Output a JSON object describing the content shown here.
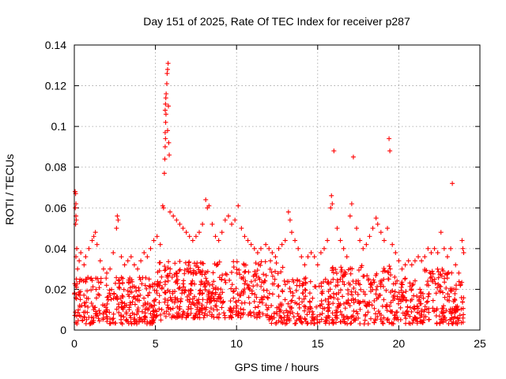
{
  "chart_data": {
    "type": "scatter",
    "title": "Day 151 of 2025, Rate Of TEC Index for receiver p287",
    "xlabel": "GPS time / hours",
    "ylabel": "ROTI / TECUs",
    "xlim": [
      0,
      25
    ],
    "ylim": [
      0,
      0.14
    ],
    "xticks": [
      0,
      5,
      10,
      15,
      20,
      25
    ],
    "xtick_labels": [
      "0",
      "5",
      "10",
      "15",
      "20",
      "25"
    ],
    "yticks": [
      0,
      0.02,
      0.04,
      0.06,
      0.08,
      0.1,
      0.12,
      0.14
    ],
    "ytick_labels": [
      "0",
      "0.02",
      "0.04",
      "0.06",
      "0.08",
      "0.1",
      "0.12",
      "0.14"
    ],
    "grid": true,
    "marker": "+",
    "color": "#ff0000",
    "series": [
      {
        "name": "ROTI",
        "points": [
          [
            0.05,
            0.068
          ],
          [
            0.08,
            0.067
          ],
          [
            0.1,
            0.062
          ],
          [
            0.06,
            0.06
          ],
          [
            0.1,
            0.056
          ],
          [
            0.12,
            0.054
          ],
          [
            0.08,
            0.052
          ],
          [
            0.15,
            0.04
          ],
          [
            0.1,
            0.036
          ],
          [
            0.2,
            0.03
          ],
          [
            0.3,
            0.034
          ],
          [
            0.4,
            0.038
          ],
          [
            0.6,
            0.032
          ],
          [
            0.7,
            0.036
          ],
          [
            0.9,
            0.04
          ],
          [
            1.1,
            0.044
          ],
          [
            1.2,
            0.046
          ],
          [
            1.3,
            0.048
          ],
          [
            1.4,
            0.042
          ],
          [
            1.6,
            0.034
          ],
          [
            1.8,
            0.03
          ],
          [
            2.0,
            0.028
          ],
          [
            2.2,
            0.03
          ],
          [
            2.4,
            0.038
          ],
          [
            2.6,
            0.05
          ],
          [
            2.65,
            0.056
          ],
          [
            2.7,
            0.054
          ],
          [
            2.9,
            0.036
          ],
          [
            3.1,
            0.032
          ],
          [
            3.3,
            0.034
          ],
          [
            3.5,
            0.036
          ],
          [
            3.7,
            0.032
          ],
          [
            3.9,
            0.03
          ],
          [
            4.1,
            0.034
          ],
          [
            4.3,
            0.038
          ],
          [
            4.5,
            0.036
          ],
          [
            4.7,
            0.04
          ],
          [
            4.9,
            0.044
          ],
          [
            5.1,
            0.046
          ],
          [
            5.3,
            0.042
          ],
          [
            5.45,
            0.061
          ],
          [
            5.5,
            0.06
          ],
          [
            5.55,
            0.077
          ],
          [
            5.58,
            0.084
          ],
          [
            5.6,
            0.09
          ],
          [
            5.62,
            0.094
          ],
          [
            5.6,
            0.097
          ],
          [
            5.63,
            0.102
          ],
          [
            5.65,
            0.106
          ],
          [
            5.6,
            0.108
          ],
          [
            5.62,
            0.111
          ],
          [
            5.64,
            0.114
          ],
          [
            5.66,
            0.116
          ],
          [
            5.7,
            0.121
          ],
          [
            5.72,
            0.126
          ],
          [
            5.75,
            0.128
          ],
          [
            5.78,
            0.131
          ],
          [
            5.8,
            0.11
          ],
          [
            5.75,
            0.098
          ],
          [
            5.82,
            0.092
          ],
          [
            5.85,
            0.086
          ],
          [
            5.9,
            0.058
          ],
          [
            6.1,
            0.056
          ],
          [
            6.3,
            0.054
          ],
          [
            6.5,
            0.052
          ],
          [
            6.7,
            0.05
          ],
          [
            6.9,
            0.048
          ],
          [
            7.1,
            0.046
          ],
          [
            7.3,
            0.044
          ],
          [
            7.5,
            0.046
          ],
          [
            7.7,
            0.048
          ],
          [
            7.9,
            0.052
          ],
          [
            8.1,
            0.064
          ],
          [
            8.2,
            0.06
          ],
          [
            8.3,
            0.061
          ],
          [
            8.5,
            0.052
          ],
          [
            8.7,
            0.046
          ],
          [
            8.9,
            0.044
          ],
          [
            9.1,
            0.048
          ],
          [
            9.3,
            0.054
          ],
          [
            9.5,
            0.056
          ],
          [
            9.7,
            0.052
          ],
          [
            9.9,
            0.054
          ],
          [
            10.1,
            0.061
          ],
          [
            10.3,
            0.05
          ],
          [
            10.5,
            0.046
          ],
          [
            10.7,
            0.044
          ],
          [
            10.9,
            0.042
          ],
          [
            11.1,
            0.04
          ],
          [
            11.3,
            0.038
          ],
          [
            11.5,
            0.04
          ],
          [
            11.8,
            0.042
          ],
          [
            12.0,
            0.04
          ],
          [
            12.2,
            0.038
          ],
          [
            12.4,
            0.036
          ],
          [
            12.6,
            0.04
          ],
          [
            12.8,
            0.042
          ],
          [
            13.0,
            0.044
          ],
          [
            13.2,
            0.058
          ],
          [
            13.3,
            0.054
          ],
          [
            13.4,
            0.048
          ],
          [
            13.6,
            0.044
          ],
          [
            13.8,
            0.04
          ],
          [
            14.0,
            0.036
          ],
          [
            14.2,
            0.032
          ],
          [
            14.4,
            0.036
          ],
          [
            14.6,
            0.038
          ],
          [
            14.8,
            0.036
          ],
          [
            15.0,
            0.032
          ],
          [
            15.2,
            0.038
          ],
          [
            15.4,
            0.04
          ],
          [
            15.6,
            0.044
          ],
          [
            15.8,
            0.06
          ],
          [
            15.85,
            0.066
          ],
          [
            15.9,
            0.062
          ],
          [
            16.0,
            0.088
          ],
          [
            16.2,
            0.05
          ],
          [
            16.4,
            0.044
          ],
          [
            16.6,
            0.04
          ],
          [
            16.8,
            0.036
          ],
          [
            17.0,
            0.056
          ],
          [
            17.1,
            0.062
          ],
          [
            17.2,
            0.085
          ],
          [
            17.4,
            0.05
          ],
          [
            17.6,
            0.044
          ],
          [
            17.8,
            0.04
          ],
          [
            18.0,
            0.042
          ],
          [
            18.2,
            0.046
          ],
          [
            18.4,
            0.05
          ],
          [
            18.6,
            0.055
          ],
          [
            18.7,
            0.052
          ],
          [
            18.9,
            0.048
          ],
          [
            19.1,
            0.044
          ],
          [
            19.3,
            0.05
          ],
          [
            19.4,
            0.094
          ],
          [
            19.45,
            0.088
          ],
          [
            19.6,
            0.042
          ],
          [
            19.8,
            0.038
          ],
          [
            20.0,
            0.034
          ],
          [
            20.2,
            0.03
          ],
          [
            20.4,
            0.032
          ],
          [
            20.6,
            0.034
          ],
          [
            20.8,
            0.032
          ],
          [
            21.0,
            0.034
          ],
          [
            21.2,
            0.036
          ],
          [
            21.4,
            0.034
          ],
          [
            21.6,
            0.036
          ],
          [
            21.8,
            0.04
          ],
          [
            22.0,
            0.038
          ],
          [
            22.2,
            0.04
          ],
          [
            22.4,
            0.038
          ],
          [
            22.6,
            0.048
          ],
          [
            22.8,
            0.04
          ],
          [
            23.0,
            0.036
          ],
          [
            23.2,
            0.04
          ],
          [
            23.3,
            0.072
          ],
          [
            23.5,
            0.032
          ],
          [
            23.7,
            0.028
          ],
          [
            23.9,
            0.044
          ],
          [
            23.95,
            0.04
          ],
          [
            24.0,
            0.038
          ]
        ]
      }
    ]
  }
}
